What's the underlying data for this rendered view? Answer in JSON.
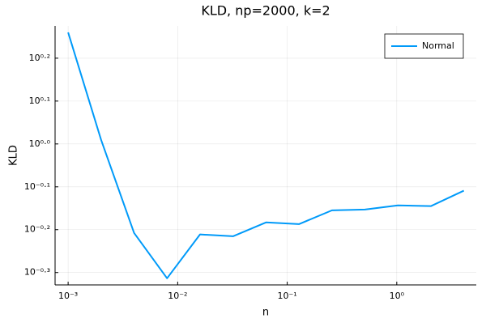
{
  "chart_data": {
    "type": "line",
    "title": "KLD, np=2000, k=2",
    "x_label": "n",
    "y_label": "KLD",
    "x": [
      0.001,
      0.002,
      0.004,
      0.008,
      0.016,
      0.032,
      0.064,
      0.128,
      0.256,
      0.512,
      1.024,
      2.048,
      4.096
    ],
    "series": [
      {
        "name": "Normal",
        "color": "#009af9",
        "values": [
          1.82,
          1.022,
          0.62,
          0.486,
          0.615,
          0.609,
          0.656,
          0.65,
          0.7,
          0.703,
          0.719,
          0.716,
          0.778
        ]
      }
    ],
    "x_log": true,
    "y_log": true,
    "xlim": [
      0.00076,
      5.32
    ],
    "ylim": [
      0.469,
      1.885
    ],
    "xticks": [
      {
        "value": 0.001,
        "label": "10⁻³"
      },
      {
        "value": 0.01,
        "label": "10⁻²"
      },
      {
        "value": 0.1,
        "label": "10⁻¹"
      },
      {
        "value": 1,
        "label": "10⁰"
      }
    ],
    "yticks": [
      {
        "value": 0.5012,
        "label": "10⁻⁰·³"
      },
      {
        "value": 0.631,
        "label": "10⁻⁰·²"
      },
      {
        "value": 0.7943,
        "label": "10⁻⁰·¹"
      },
      {
        "value": 1,
        "label": "10⁰·⁰"
      },
      {
        "value": 1.2589,
        "label": "10⁰·¹"
      },
      {
        "value": 1.5849,
        "label": "10⁰·²"
      }
    ],
    "grid": true,
    "legend": "top-right"
  }
}
